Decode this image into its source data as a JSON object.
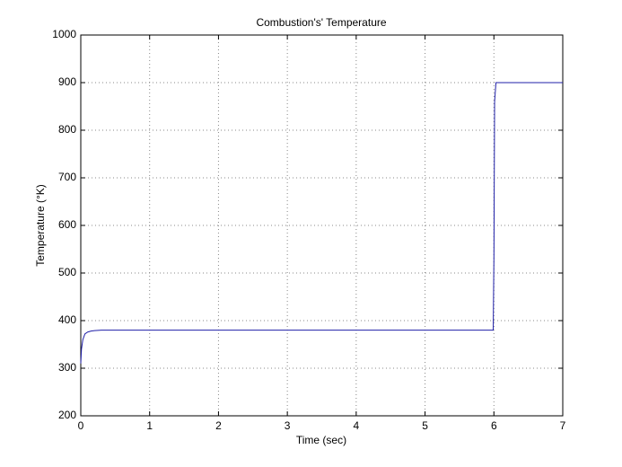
{
  "chart_data": {
    "type": "line",
    "title": "Combustion's' Temperature",
    "x_label": "Time (sec)",
    "y_label": "Temperature (°K)",
    "x": [
      0,
      0.01,
      0.03,
      0.06,
      0.1,
      0.15,
      0.2,
      0.3,
      5.99,
      6.0,
      6.01,
      6.03,
      7
    ],
    "values": [
      310,
      340,
      360,
      372,
      376,
      378,
      379,
      380,
      380,
      530,
      860,
      900,
      900
    ],
    "color": "#1f1fa8",
    "xlim": [
      0,
      7
    ],
    "xticks": [
      0,
      1,
      2,
      3,
      4,
      5,
      6,
      7
    ],
    "ylim": [
      200,
      1000
    ],
    "yticks": [
      200,
      300,
      400,
      500,
      600,
      700,
      800,
      900,
      1000
    ],
    "grid": true
  }
}
